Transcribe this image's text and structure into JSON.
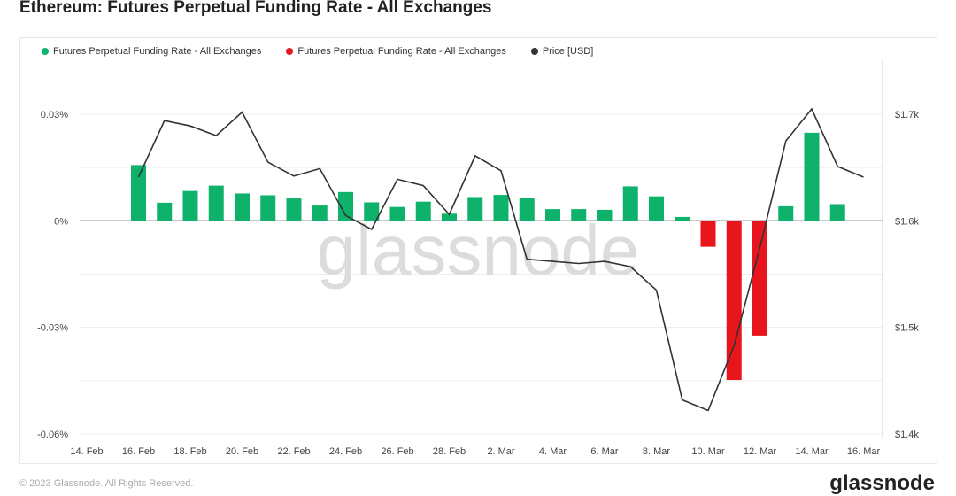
{
  "title": "Ethereum: Futures Perpetual Funding Rate - All Exchanges",
  "watermark": "glassnode",
  "footer": {
    "copyright": "© 2023 Glassnode. All Rights Reserved.",
    "logo": "glassnode"
  },
  "legend": [
    {
      "label": "Futures Perpetual Funding Rate - All Exchanges",
      "color": "#0fb26b"
    },
    {
      "label": "Futures Perpetual Funding Rate - All Exchanges",
      "color": "#e8161c"
    },
    {
      "label": "Price [USD]",
      "color": "#333333"
    }
  ],
  "chart_data": {
    "type": "bar",
    "x_tick_labels": [
      "14. Feb",
      "16. Feb",
      "18. Feb",
      "20. Feb",
      "22. Feb",
      "24. Feb",
      "26. Feb",
      "28. Feb",
      "2. Mar",
      "4. Mar",
      "6. Mar",
      "8. Mar",
      "10. Mar",
      "12. Mar",
      "14. Mar",
      "16. Mar"
    ],
    "y_left_tick_labels": [
      "0.03%",
      "0%",
      "-0.03%",
      "-0.06%"
    ],
    "y_left_ticks": [
      0.03,
      0,
      -0.03,
      -0.06
    ],
    "y_left_range": [
      -0.06,
      0.03
    ],
    "y_right_tick_labels": [
      "$1.7k",
      "$1.6k",
      "$1.5k",
      "$1.4k"
    ],
    "y_right_ticks": [
      1700,
      1600,
      1500,
      1400
    ],
    "y_right_range": [
      1400,
      1700
    ],
    "grid": true,
    "legend_position": "top-left",
    "categories": [
      "2023-02-16",
      "2023-02-17",
      "2023-02-18",
      "2023-02-19",
      "2023-02-20",
      "2023-02-21",
      "2023-02-22",
      "2023-02-23",
      "2023-02-24",
      "2023-02-25",
      "2023-02-26",
      "2023-02-27",
      "2023-02-28",
      "2023-03-01",
      "2023-03-02",
      "2023-03-03",
      "2023-03-04",
      "2023-03-05",
      "2023-03-06",
      "2023-03-07",
      "2023-03-08",
      "2023-03-09",
      "2023-03-10",
      "2023-03-11",
      "2023-03-12",
      "2023-03-13",
      "2023-03-14",
      "2023-03-15",
      "2023-03-16"
    ],
    "series": [
      {
        "name": "Futures Perpetual Funding Rate - All Exchanges",
        "unit": "%",
        "values": [
          0.0157,
          0.0051,
          0.0084,
          0.0099,
          0.0077,
          0.0072,
          0.0063,
          0.0043,
          0.0081,
          0.0052,
          0.0039,
          0.0054,
          0.002,
          0.0067,
          0.0073,
          0.0065,
          0.0033,
          0.0033,
          0.0031,
          0.0097,
          0.0069,
          0.0011,
          -0.0073,
          -0.0448,
          -0.0323,
          0.0041,
          0.0248,
          0.0047,
          null
        ]
      },
      {
        "name": "Price [USD]",
        "values": [
          1641,
          1694,
          1689,
          1680,
          1702,
          1655,
          1642,
          1649,
          1605,
          1592,
          1639,
          1633,
          1606,
          1661,
          1647,
          1564,
          1562,
          1560,
          1562,
          1557,
          1535,
          1432,
          1422,
          1483,
          1575,
          1675,
          1705,
          1651,
          1641
        ]
      }
    ]
  }
}
